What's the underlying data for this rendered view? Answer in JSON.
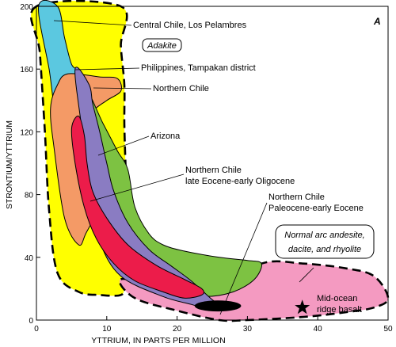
{
  "chart_data": {
    "type": "area",
    "panel_label": "A",
    "xlabel": "YTTRIUM, IN PARTS PER MILLION",
    "ylabel": "STRONTIUM/YTTRIUM",
    "xlim": [
      0,
      50
    ],
    "ylim": [
      0,
      200
    ],
    "x_ticks": [
      "0",
      "10",
      "20",
      "30",
      "40",
      "50"
    ],
    "y_ticks": [
      "0",
      "40",
      "80",
      "120",
      "160",
      "200"
    ],
    "colors": {
      "adakite": "#ffff00",
      "central_chile": "#5bc8e0",
      "philippines": "#7b7bbd",
      "northern_chile": "#f49a66",
      "arizona": "#8a7cc2",
      "late_eocene": "#ec1c4a",
      "paleocene": "#7dc242",
      "normal_arc": "#f49ac1",
      "morb_field": "#000000"
    },
    "fields": [
      {
        "id": "adakite",
        "name": "Adakite",
        "points": [
          [
            0,
            200
          ],
          [
            12,
            200
          ],
          [
            12,
            175
          ],
          [
            12.5,
            150
          ],
          [
            12.5,
            125
          ],
          [
            12.7,
            95
          ],
          [
            13,
            60
          ],
          [
            13,
            40
          ],
          [
            12.5,
            22
          ],
          [
            12,
            16
          ],
          [
            9,
            16
          ],
          [
            6,
            18
          ],
          [
            3,
            30
          ],
          [
            1.8,
            70
          ],
          [
            1.2,
            120
          ],
          [
            0.5,
            170
          ]
        ]
      },
      {
        "id": "normal_arc",
        "name": "Normal arc andesite, dacite, and rhyolite",
        "points": [
          [
            12,
            26
          ],
          [
            18,
            22
          ],
          [
            26,
            18
          ],
          [
            32,
            36
          ],
          [
            38,
            36
          ],
          [
            44,
            33
          ],
          [
            48,
            28
          ],
          [
            50,
            14
          ],
          [
            48,
            8
          ],
          [
            44,
            5
          ],
          [
            38,
            2
          ],
          [
            30,
            0
          ],
          [
            26,
            0
          ],
          [
            20,
            6
          ],
          [
            14,
            14
          ]
        ]
      },
      {
        "id": "central_chile",
        "name": "Central Chile, Los Pelambres",
        "points": [
          [
            0.3,
            200
          ],
          [
            3,
            200
          ],
          [
            4,
            180
          ],
          [
            5,
            163
          ],
          [
            6,
            158
          ],
          [
            5,
            145
          ],
          [
            3,
            128
          ],
          [
            1.8,
            160
          ]
        ]
      },
      {
        "id": "northern_chile",
        "name": "Northern Chile",
        "points": [
          [
            4.5,
            157
          ],
          [
            9,
            155
          ],
          [
            11.5,
            154
          ],
          [
            12,
            146
          ],
          [
            10,
            140
          ],
          [
            8,
            133
          ],
          [
            7,
            122
          ],
          [
            6.5,
            108
          ],
          [
            7,
            95
          ],
          [
            8,
            85
          ],
          [
            8.5,
            70
          ],
          [
            7,
            55
          ],
          [
            6,
            48
          ],
          [
            4,
            65
          ],
          [
            2.5,
            110
          ],
          [
            2,
            135
          ],
          [
            3,
            150
          ]
        ]
      },
      {
        "id": "paleocene",
        "name": "Northern Chile Paleocene-early Eocene",
        "points": [
          [
            6.5,
            150
          ],
          [
            9.5,
            125
          ],
          [
            11.5,
            108
          ],
          [
            13,
            96
          ],
          [
            14,
            72
          ],
          [
            16,
            55
          ],
          [
            18,
            48
          ],
          [
            21,
            44
          ],
          [
            26,
            40
          ],
          [
            30,
            38
          ],
          [
            32,
            36
          ],
          [
            31,
            26
          ],
          [
            28,
            18
          ],
          [
            24,
            15
          ],
          [
            18,
            18
          ],
          [
            13,
            26
          ],
          [
            10,
            40
          ],
          [
            8,
            70
          ],
          [
            6.5,
            110
          ]
        ]
      },
      {
        "id": "arizona",
        "name": "Arizona",
        "points": [
          [
            5.5,
            160
          ],
          [
            7.5,
            150
          ],
          [
            8,
            138
          ],
          [
            9,
            120
          ],
          [
            10,
            100
          ],
          [
            11,
            82
          ],
          [
            13,
            62
          ],
          [
            16,
            45
          ],
          [
            19,
            35
          ],
          [
            22,
            25
          ],
          [
            25,
            13
          ],
          [
            26.5,
            8
          ],
          [
            25,
            6
          ],
          [
            22,
            10
          ],
          [
            18,
            15
          ],
          [
            12,
            28
          ],
          [
            9,
            50
          ],
          [
            7.5,
            80
          ],
          [
            6.5,
            120
          ]
        ]
      },
      {
        "id": "late_eocene",
        "name": "Northern Chile late Eocene-early Oligocene",
        "points": [
          [
            6,
            130
          ],
          [
            6.8,
            118
          ],
          [
            7.2,
            100
          ],
          [
            8,
            82
          ],
          [
            10,
            65
          ],
          [
            13,
            48
          ],
          [
            17,
            35
          ],
          [
            21,
            26
          ],
          [
            23.5,
            20
          ],
          [
            23.5,
            16
          ],
          [
            21,
            14
          ],
          [
            18,
            18
          ],
          [
            14,
            25
          ],
          [
            11,
            36
          ],
          [
            8.5,
            52
          ],
          [
            6.8,
            72
          ],
          [
            5.5,
            100
          ],
          [
            5,
            122
          ]
        ]
      }
    ],
    "black_ellipse": {
      "cx": 25.8,
      "cy": 9,
      "rx": 3.3,
      "ry": 3.5
    },
    "star": {
      "x": 37.8,
      "y": 8
    },
    "labels": {
      "central_chile": "Central Chile, Los Pelambres",
      "adakite": "Adakite",
      "philippines": "Philippines, Tampakan district",
      "northern_chile": "Northern Chile",
      "arizona": "Arizona",
      "late_eocene_1": "Northern Chile",
      "late_eocene_2": "late Eocene-early Oligocene",
      "paleocene_1": "Northern Chile",
      "paleocene_2": "Paleocene-early Eocene",
      "normal_arc_1": "Normal arc andesite,",
      "normal_arc_2": "dacite, and rhyolite",
      "morb_1": "Mid-ocean",
      "morb_2": "ridge basalt"
    }
  }
}
